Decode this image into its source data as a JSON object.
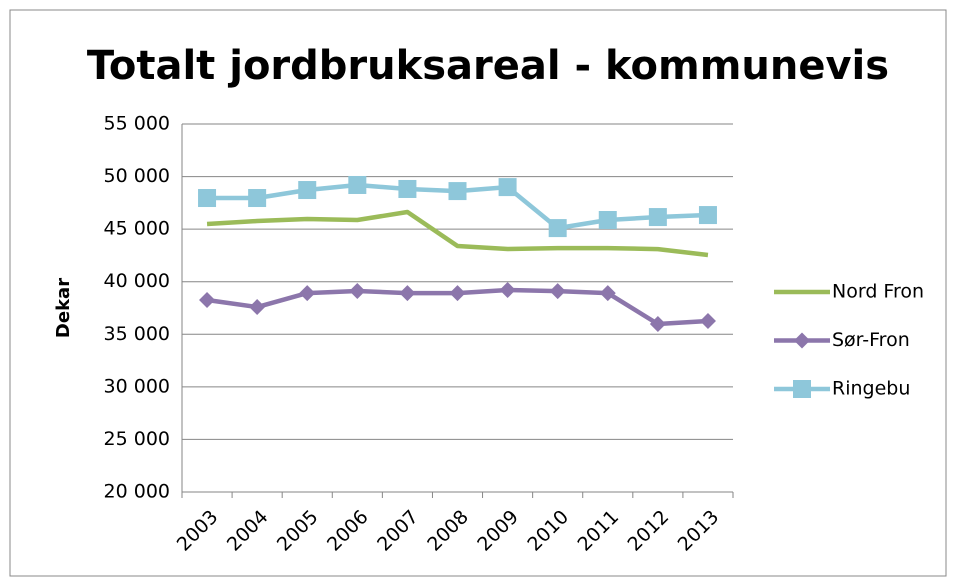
{
  "chart_data": {
    "type": "line",
    "title": "Totalt jordbruksareal - kommunevis",
    "y_label": "Dekar",
    "categories": [
      "2003",
      "2004",
      "2005",
      "2006",
      "2007",
      "2008",
      "2009",
      "2010",
      "2011",
      "2012",
      "2013"
    ],
    "series": [
      {
        "name": "Nord Fron",
        "color": "#9bbb59",
        "marker": "none",
        "values": [
          45490,
          45770,
          45960,
          45870,
          46630,
          43400,
          43110,
          43200,
          43200,
          43100,
          42540
        ]
      },
      {
        "name": "Sør-Fron",
        "color": "#8c76ab",
        "marker": "diamond",
        "values": [
          38260,
          37590,
          38920,
          39120,
          38920,
          38920,
          39210,
          39110,
          38920,
          35980,
          36260
        ]
      },
      {
        "name": "Ringebu",
        "color": "#8ec7da",
        "marker": "square",
        "values": [
          47960,
          47960,
          48720,
          49200,
          48820,
          48620,
          49000,
          45100,
          45870,
          46150,
          46340
        ]
      }
    ],
    "ylim": [
      20000,
      55000
    ],
    "yticks": [
      {
        "value": 20000,
        "label": "20 000"
      },
      {
        "value": 25000,
        "label": "25 000"
      },
      {
        "value": 30000,
        "label": "30 000"
      },
      {
        "value": 35000,
        "label": "35 000"
      },
      {
        "value": 40000,
        "label": "40 000"
      },
      {
        "value": 45000,
        "label": "45 000"
      },
      {
        "value": 50000,
        "label": "50 000"
      },
      {
        "value": 55000,
        "label": "55 000"
      }
    ],
    "grid": true,
    "legend": "right"
  }
}
